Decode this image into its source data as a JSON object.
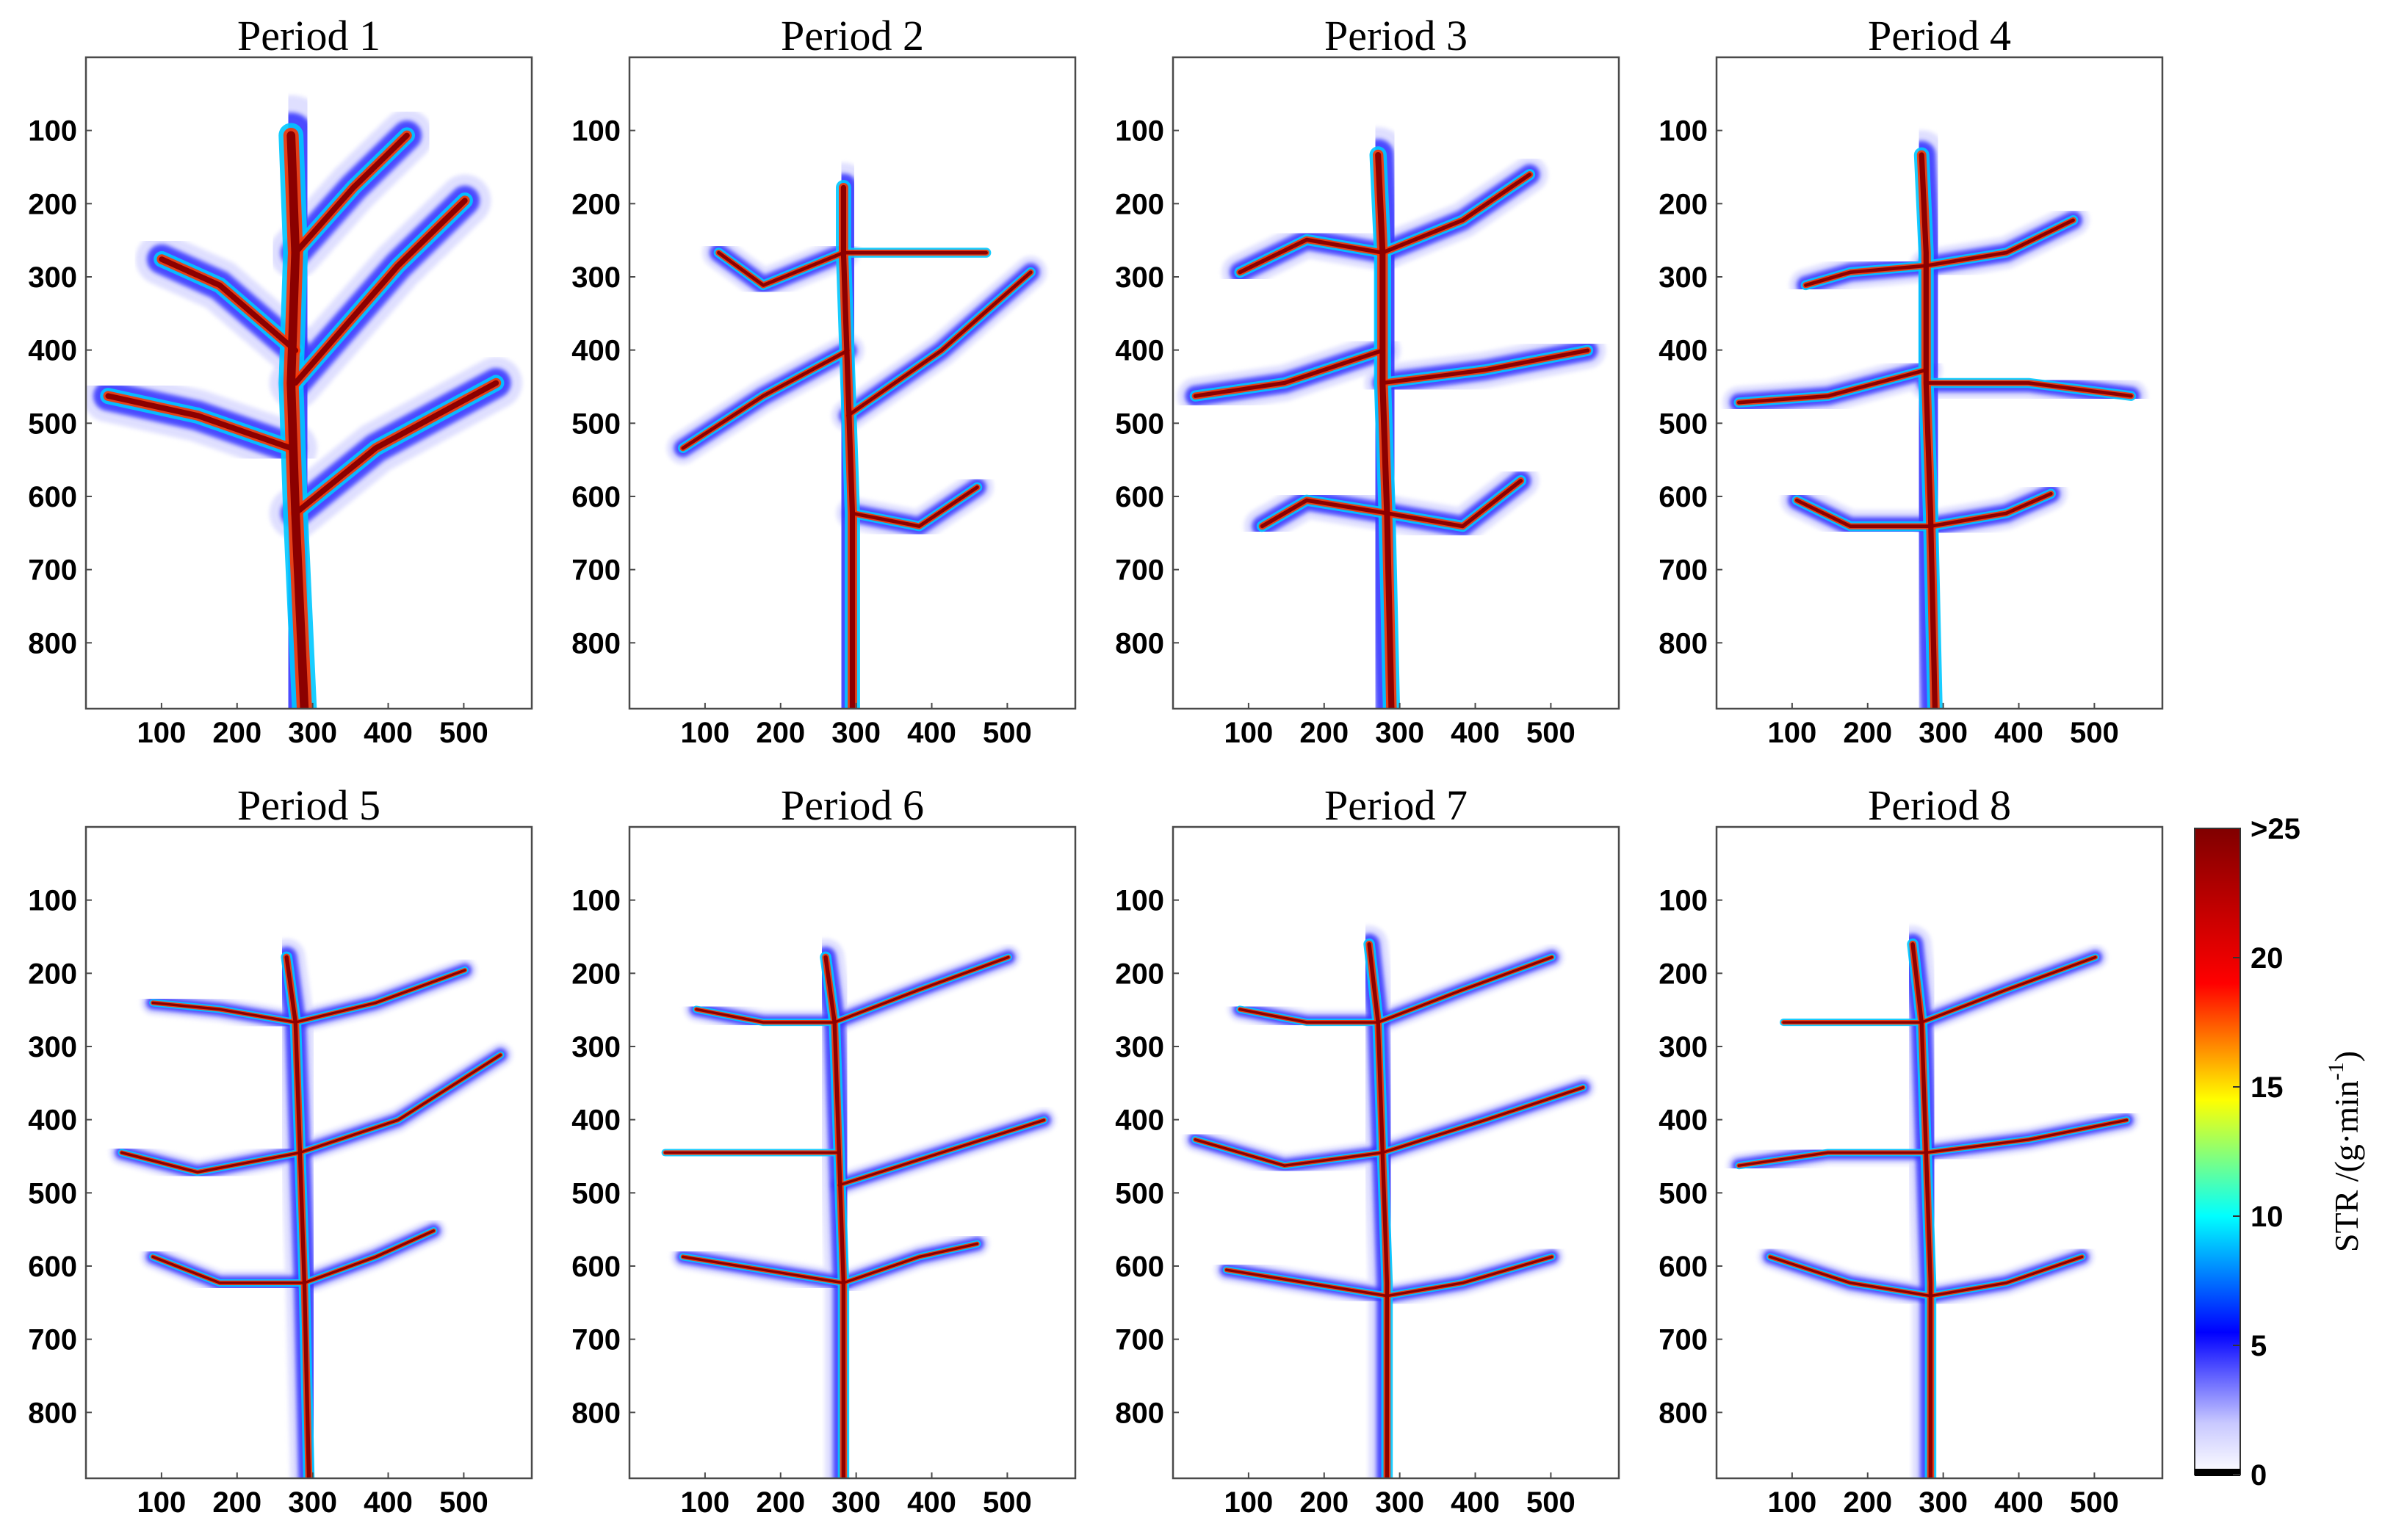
{
  "chart_data": {
    "type": "heatmap",
    "panels": [
      {
        "title": "Period 1"
      },
      {
        "title": "Period 2"
      },
      {
        "title": "Period 3"
      },
      {
        "title": "Period 4"
      },
      {
        "title": "Period 5"
      },
      {
        "title": "Period 6"
      },
      {
        "title": "Period 7"
      },
      {
        "title": "Period 8"
      }
    ],
    "x_ticks": [
      100,
      200,
      300,
      400,
      500
    ],
    "y_ticks": [
      100,
      200,
      300,
      400,
      500,
      600,
      700,
      800
    ],
    "xlim": [
      0,
      590
    ],
    "ylim": [
      0,
      890
    ],
    "y_inverted": true,
    "colorbar": {
      "label": "STR /(g·min",
      "label_sup": "-1",
      "label_end": ")",
      "range": [
        0,
        25
      ],
      "ticks": [
        "0",
        "5",
        "10",
        "15",
        "20",
        ">25"
      ],
      "colormap": [
        "#ffffff",
        "#0000ff",
        "#00ffff",
        "#ffff00",
        "#ff0000",
        "#800000"
      ]
    }
  }
}
